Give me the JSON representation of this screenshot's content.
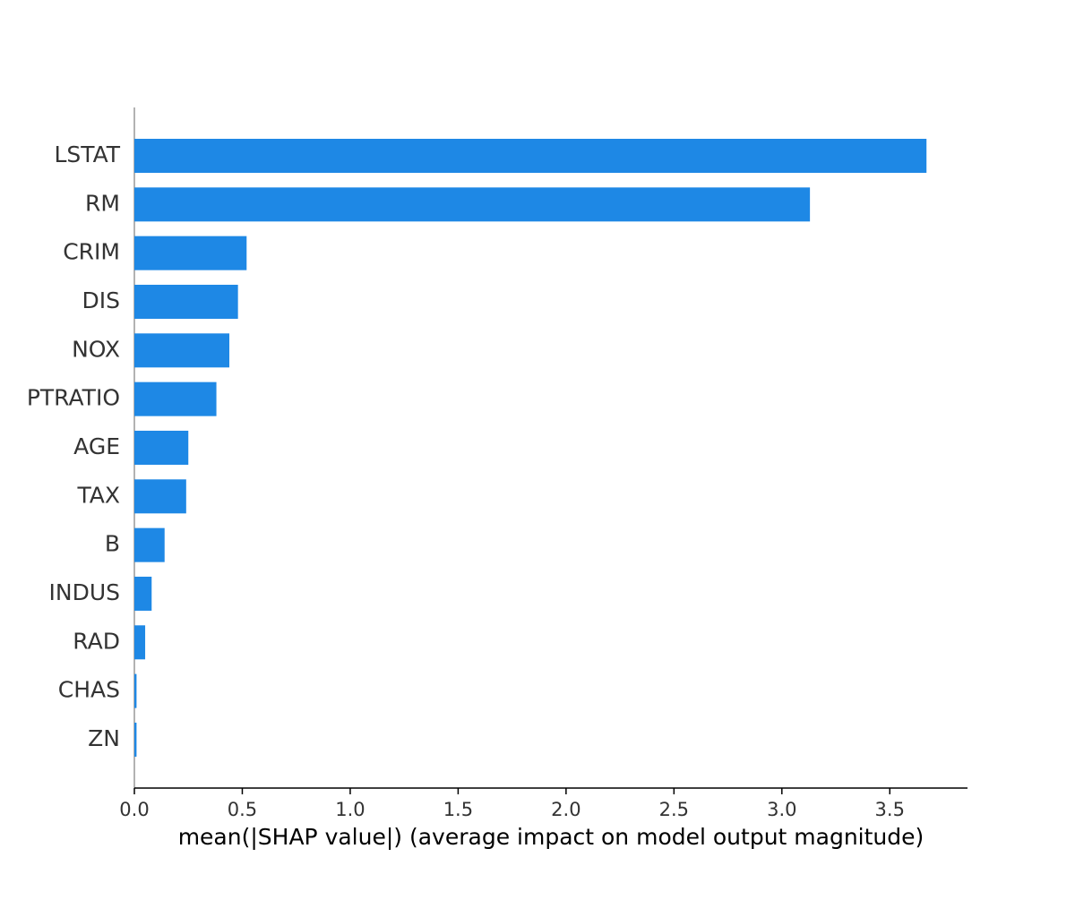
{
  "chart_data": {
    "type": "bar",
    "orientation": "horizontal",
    "xlabel": "mean(|SHAP value|) (average impact on model output magnitude)",
    "categories": [
      "LSTAT",
      "RM",
      "CRIM",
      "DIS",
      "NOX",
      "PTRATIO",
      "AGE",
      "TAX",
      "B",
      "INDUS",
      "RAD",
      "CHAS",
      "ZN"
    ],
    "values": [
      3.67,
      3.13,
      0.52,
      0.48,
      0.44,
      0.38,
      0.25,
      0.24,
      0.14,
      0.08,
      0.05,
      0.01,
      0.01
    ],
    "color": "#1e88e5",
    "xlim": [
      0,
      3.86
    ],
    "xticks": [
      {
        "value": 0,
        "label": "0.0"
      },
      0.5,
      {
        "value": 1,
        "label": "1.0"
      },
      1.5,
      {
        "value": 2,
        "label": "2.0"
      },
      2.5,
      {
        "value": 3,
        "label": "3.0"
      },
      3.5
    ],
    "grid": false
  }
}
